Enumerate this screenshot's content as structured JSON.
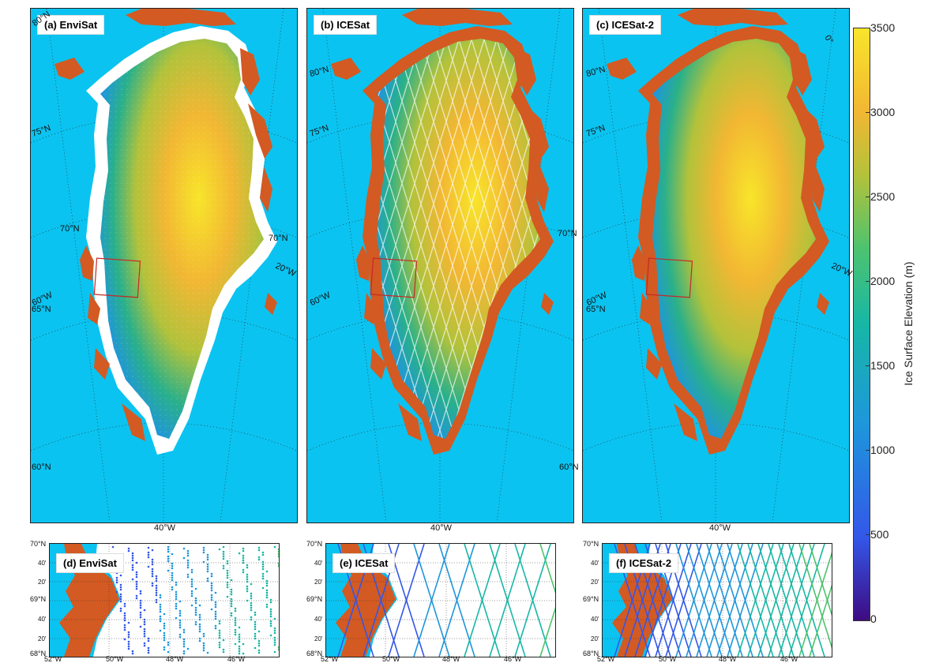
{
  "panels": [
    {
      "label": "(a) EnviSat",
      "sensor": "EnviSat"
    },
    {
      "label": "(b) ICESat",
      "sensor": "ICESat"
    },
    {
      "label": "(c) ICESat-2",
      "sensor": "ICESat-2"
    }
  ],
  "insets": [
    {
      "label": "(d) EnviSat",
      "sensor": "EnviSat"
    },
    {
      "label": "(e) ICESat",
      "sensor": "ICESat"
    },
    {
      "label": "(f) ICESat-2",
      "sensor": "ICESat-2"
    }
  ],
  "map_labels": {
    "lat_80": "80°N",
    "lat_75": "75°N",
    "lat_70": "70°N",
    "lat_65": "65°N",
    "lat_60": "60°N",
    "lon_60w": "60°W",
    "lon_40w": "40°W",
    "lon_20w": "20°W",
    "lon_0": "0°"
  },
  "inset_labels": {
    "lat_70": "70°N",
    "lat_40a": "40'",
    "lat_20a": "20'",
    "lat_69": "69°N",
    "lat_40b": "40'",
    "lat_20b": "20'",
    "lat_68": "68°N",
    "lon_52": "52°W",
    "lon_50": "50°W",
    "lon_48": "48°W",
    "lon_46": "46°W"
  },
  "colorbar": {
    "title": "Ice Surface Elevation (m)",
    "ticks": [
      "3500",
      "3000",
      "2500",
      "2000",
      "1500",
      "1000",
      "500",
      "0"
    ],
    "min": 0,
    "max": 3500
  },
  "colors": {
    "ocean": "#0bc3f0",
    "land": "#d35a22",
    "uncovered_ice": "#ffffff",
    "study_box": "#c62828",
    "elev_low": "#3e0b82",
    "elev_high": "#f8e52a"
  }
}
